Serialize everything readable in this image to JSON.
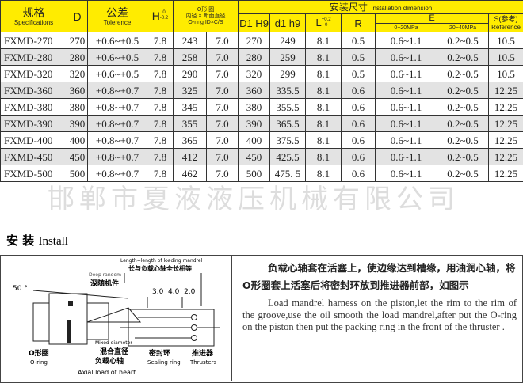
{
  "table": {
    "headers": {
      "spec_cn": "规格",
      "spec_en": "Specifications",
      "d": "D",
      "tol_cn": "公差",
      "tol_en": "Tolerence",
      "h": "H",
      "h_sup": "0",
      "h_sub": "-0.2",
      "oring_l1": "O形 圈",
      "oring_l2": "内径 × 断面直径",
      "oring_l3": "O-ring ID×C/S",
      "install_cn": "安装尺寸",
      "install_en": "Installation dimension",
      "d1H9": "D1 H9",
      "d1h9": "d1 h9",
      "l": "L",
      "l_sup": "+0.2",
      "l_sub": "0",
      "r": "R",
      "e": "E",
      "e1": "0~20MPa",
      "e2": "20~40MPa",
      "s_cn": "S(参考)",
      "s_en": "Reference"
    },
    "rows": [
      [
        "FXMD-270",
        "270",
        "+0.6~+0.5",
        "7.8",
        "243",
        "7.0",
        "270",
        "249",
        "8.1",
        "0.5",
        "0.6~1.1",
        "0.2~0.5",
        "10.5"
      ],
      [
        "FXMD-280",
        "280",
        "+0.6~+0.5",
        "7.8",
        "258",
        "7.0",
        "280",
        "259",
        "8.1",
        "0.5",
        "0.6~1.1",
        "0.2~0.5",
        "10.5"
      ],
      [
        "FXMD-320",
        "320",
        "+0.6~+0.5",
        "7.8",
        "290",
        "7.0",
        "320",
        "299",
        "8.1",
        "0.5",
        "0.6~1.1",
        "0.2~0.5",
        "10.5"
      ],
      [
        "FXMD-360",
        "360",
        "+0.8~+0.7",
        "7.8",
        "325",
        "7.0",
        "360",
        "335.5",
        "8.1",
        "0.6",
        "0.6~1.1",
        "0.2~0.5",
        "12.25"
      ],
      [
        "FXMD-380",
        "380",
        "+0.8~+0.7",
        "7.8",
        "345",
        "7.0",
        "380",
        "355.5",
        "8.1",
        "0.6",
        "0.6~1.1",
        "0.2~0.5",
        "12.25"
      ],
      [
        "FXMD-390",
        "390",
        "+0.8~+0.7",
        "7.8",
        "355",
        "7.0",
        "390",
        "365.5",
        "8.1",
        "0.6",
        "0.6~1.1",
        "0.2~0.5",
        "12.25"
      ],
      [
        "FXMD-400",
        "400",
        "+0.8~+0.7",
        "7.8",
        "365",
        "7.0",
        "400",
        "375.5",
        "8.1",
        "0.6",
        "0.6~1.1",
        "0.2~0.5",
        "12.25"
      ],
      [
        "FXMD-450",
        "450",
        "+0.8~+0.7",
        "7.8",
        "412",
        "7.0",
        "450",
        "425.5",
        "8.1",
        "0.6",
        "0.6~1.1",
        "0.2~0.5",
        "12.25"
      ],
      [
        "FXMD-500",
        "500",
        "+0.8~+0.7",
        "7.8",
        "462",
        "7.0",
        "500",
        "475. 5",
        "8.1",
        "0.6",
        "0.6~1.1",
        "0.2~0.5",
        "12.25"
      ]
    ]
  },
  "watermark": "邯郸市夏液液压机械有限公司",
  "install": {
    "title_cn": "安 装",
    "title_en": "Install",
    "diagram": {
      "length_en": "Length=length of loading mandrel",
      "length_cn": "长与负载心轴全长相等",
      "deep_en": "Deep random",
      "deep_cn": "深随机件",
      "angle": "50 °",
      "dims": "3.0  4.0  2.0",
      "mixed_en": "Mixed diameter",
      "oring_cn": "O形圈",
      "oring_en": "O-ring",
      "mixed_cn": "混合直径",
      "mandrel_cn": "负载心轴",
      "mandrel_en": "Axial load of heart",
      "seal_cn": "密封环",
      "seal_en": "Sealing ring",
      "thruster_cn": "推进器",
      "thruster_en": "Thrusters"
    },
    "text_cn": "负载心轴套在活塞上，使边缘达到槽缘，用油润心轴，将O形圈套上活塞后将密封环放到推进器前部，如图示",
    "text_en": "Load mandrel harness on the piston,let the rim to the rim of the groove,use the oil smooth the load mandrel,after put the O-ring on the piston then put the packing ring in the front of the thruster ."
  }
}
